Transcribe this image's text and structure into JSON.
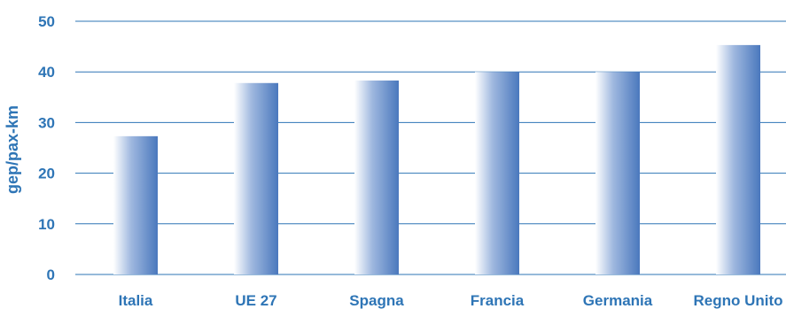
{
  "chart_data": {
    "type": "bar",
    "categories": [
      "Italia",
      "UE 27",
      "Spagna",
      "Francia",
      "Germania",
      "Regno Unito"
    ],
    "values": [
      27.3,
      37.8,
      38.3,
      40.0,
      40.0,
      45.3
    ],
    "title": "",
    "xlabel": "",
    "ylabel": "gep/pax-km",
    "ylim": [
      0,
      50
    ],
    "yticks": [
      "0",
      "10",
      "20",
      "30",
      "40",
      "50"
    ],
    "grid": true,
    "legend": "none",
    "colors": {
      "bar_dark": "#4a78bd",
      "bar_light": "#ffffff",
      "gridline": "#2e75b6",
      "text": "#2e75b6"
    }
  }
}
